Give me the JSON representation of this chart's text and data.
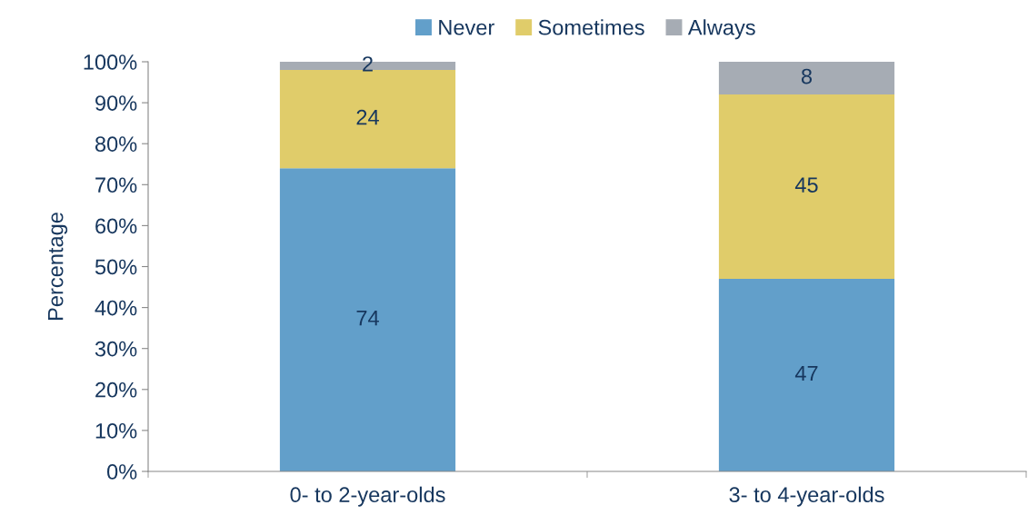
{
  "chart_data": {
    "type": "bar",
    "stacked": true,
    "ylabel": "Percentage",
    "categories": [
      "0- to 2-year-olds",
      "3- to 4-year-olds"
    ],
    "series": [
      {
        "name": "Never",
        "color": "#629fca",
        "values": [
          74,
          47
        ]
      },
      {
        "name": "Sometimes",
        "color": "#e0cc6a",
        "values": [
          24,
          45
        ]
      },
      {
        "name": "Always",
        "color": "#a6acb4",
        "values": [
          2,
          8
        ]
      }
    ],
    "ylim": [
      0,
      100
    ],
    "yticks": [
      {
        "value": 0,
        "label": "0%"
      },
      {
        "value": 10,
        "label": "10%"
      },
      {
        "value": 20,
        "label": "20%"
      },
      {
        "value": 30,
        "label": "30%"
      },
      {
        "value": 40,
        "label": "40%"
      },
      {
        "value": 50,
        "label": "50%"
      },
      {
        "value": 60,
        "label": "60%"
      },
      {
        "value": 70,
        "label": "70%"
      },
      {
        "value": 80,
        "label": "80%"
      },
      {
        "value": 90,
        "label": "90%"
      },
      {
        "value": 100,
        "label": "100%"
      }
    ],
    "data_labels": true,
    "legend": "top",
    "grid": false
  }
}
